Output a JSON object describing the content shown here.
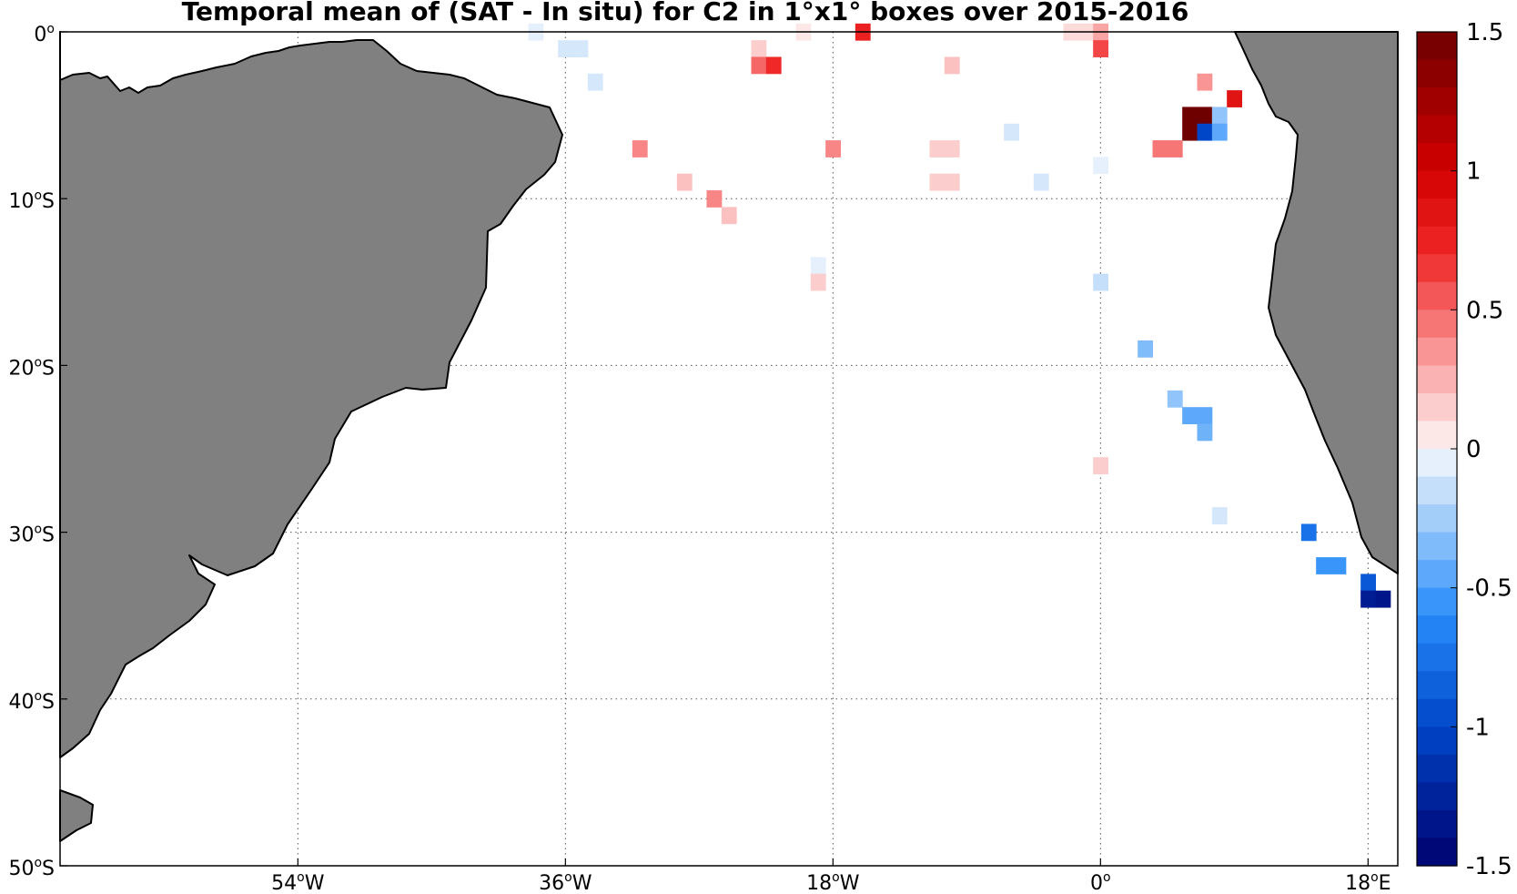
{
  "title": "Temporal mean of (SAT - In situ) for C2 in 1°x1° boxes over 2015-2016",
  "map": {
    "lon_range": [
      -70,
      20
    ],
    "lat_range": [
      -50,
      0
    ],
    "x_ticks": [
      {
        "lon": -54,
        "num": "54",
        "suffix": "W"
      },
      {
        "lon": -36,
        "num": "36",
        "suffix": "W"
      },
      {
        "lon": -18,
        "num": "18",
        "suffix": "W"
      },
      {
        "lon": 0,
        "num": "0",
        "suffix": ""
      },
      {
        "lon": 18,
        "num": "18",
        "suffix": "E"
      }
    ],
    "y_ticks": [
      {
        "lat": 0,
        "num": "0",
        "suffix": ""
      },
      {
        "lat": -10,
        "num": "10",
        "suffix": "S"
      },
      {
        "lat": -20,
        "num": "20",
        "suffix": "S"
      },
      {
        "lat": -30,
        "num": "30",
        "suffix": "S"
      },
      {
        "lat": -40,
        "num": "40",
        "suffix": "S"
      },
      {
        "lat": -50,
        "num": "50",
        "suffix": "S"
      }
    ],
    "degree_mark": "o",
    "land_color": "#808080",
    "grid_lines": "dotted"
  },
  "colorbar": {
    "range": [
      -1.5,
      1.5
    ],
    "ticks": [
      "1.5",
      "1",
      "0.5",
      "0",
      "-0.5",
      "-1",
      "-1.5"
    ],
    "tick_values": [
      1.5,
      1,
      0.5,
      0,
      -0.5,
      -1,
      -1.5
    ],
    "levels": 30,
    "colormap": "blue-white-red"
  },
  "chart_data": {
    "type": "heatmap",
    "units": "",
    "cell_size_deg": 1,
    "cells": [
      {
        "lon": -38,
        "lat": 0,
        "value": -0.05
      },
      {
        "lon": -36,
        "lat": -1,
        "value": -0.1
      },
      {
        "lon": -35,
        "lat": -1,
        "value": -0.1
      },
      {
        "lon": -34,
        "lat": -3,
        "value": -0.1
      },
      {
        "lon": -23,
        "lat": -1,
        "value": 0.15
      },
      {
        "lon": -23,
        "lat": -2,
        "value": 0.5
      },
      {
        "lon": -22,
        "lat": -2,
        "value": 0.7
      },
      {
        "lon": -20,
        "lat": 0,
        "value": 0.05
      },
      {
        "lon": -16,
        "lat": 0,
        "value": 0.75
      },
      {
        "lon": -10,
        "lat": -2,
        "value": 0.2
      },
      {
        "lon": -2,
        "lat": 0,
        "value": 0.1
      },
      {
        "lon": -1,
        "lat": 0,
        "value": 0.1
      },
      {
        "lon": 0,
        "lat": 0,
        "value": 0.3
      },
      {
        "lon": 0,
        "lat": -1,
        "value": 0.6
      },
      {
        "lon": -31,
        "lat": -7,
        "value": 0.4
      },
      {
        "lon": -18,
        "lat": -7,
        "value": 0.4
      },
      {
        "lon": -11,
        "lat": -7,
        "value": 0.15
      },
      {
        "lon": -10,
        "lat": -7,
        "value": 0.15
      },
      {
        "lon": -6,
        "lat": -6,
        "value": -0.1
      },
      {
        "lon": 0,
        "lat": -8,
        "value": -0.05
      },
      {
        "lon": -28,
        "lat": -9,
        "value": 0.2
      },
      {
        "lon": -11,
        "lat": -9,
        "value": 0.15
      },
      {
        "lon": -10,
        "lat": -9,
        "value": 0.15
      },
      {
        "lon": -4,
        "lat": -9,
        "value": -0.1
      },
      {
        "lon": -26,
        "lat": -10,
        "value": 0.4
      },
      {
        "lon": -25,
        "lat": -11,
        "value": 0.2
      },
      {
        "lon": -19,
        "lat": -14,
        "value": -0.05
      },
      {
        "lon": -19,
        "lat": -15,
        "value": 0.15
      },
      {
        "lon": 0,
        "lat": -15,
        "value": -0.15
      },
      {
        "lon": 7,
        "lat": -3,
        "value": 0.35
      },
      {
        "lon": 9,
        "lat": -4,
        "value": 0.85
      },
      {
        "lon": 6,
        "lat": -5,
        "value": 1.5
      },
      {
        "lon": 7,
        "lat": -5,
        "value": 1.5
      },
      {
        "lon": 6,
        "lat": -6,
        "value": 1.5
      },
      {
        "lon": 7,
        "lat": -6,
        "value": -1.0
      },
      {
        "lon": 8,
        "lat": -5,
        "value": -0.3
      },
      {
        "lon": 8,
        "lat": -6,
        "value": -0.45
      },
      {
        "lon": 4,
        "lat": -7,
        "value": 0.45
      },
      {
        "lon": 5,
        "lat": -7,
        "value": 0.45
      },
      {
        "lon": 3,
        "lat": -19,
        "value": -0.35
      },
      {
        "lon": 5,
        "lat": -22,
        "value": -0.3
      },
      {
        "lon": 6,
        "lat": -23,
        "value": -0.45
      },
      {
        "lon": 7,
        "lat": -23,
        "value": -0.45
      },
      {
        "lon": 7,
        "lat": -24,
        "value": -0.4
      },
      {
        "lon": 0,
        "lat": -26,
        "value": 0.15
      },
      {
        "lon": 8,
        "lat": -29,
        "value": -0.1
      },
      {
        "lon": 14,
        "lat": -30,
        "value": -0.75
      },
      {
        "lon": 15,
        "lat": -32,
        "value": -0.55
      },
      {
        "lon": 16,
        "lat": -32,
        "value": -0.55
      },
      {
        "lon": 18,
        "lat": -33,
        "value": -0.9
      },
      {
        "lon": 18,
        "lat": -34,
        "value": -1.3
      },
      {
        "lon": 19,
        "lat": -34,
        "value": -1.35
      }
    ]
  }
}
